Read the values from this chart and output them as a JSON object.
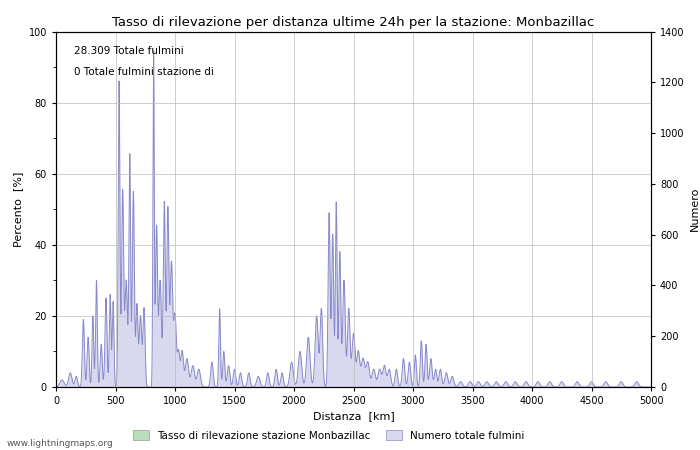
{
  "title": "Tasso di rilevazione per distanza ultime 24h per la stazione: Monbazillac",
  "xlabel": "Distanza  [km]",
  "ylabel_left": "Percento  [%]",
  "ylabel_right": "Numero",
  "xlim": [
    0,
    5000
  ],
  "ylim_left": [
    0,
    100
  ],
  "ylim_right": [
    0,
    1400
  ],
  "annotation_line1": "28.309 Totale fulmini",
  "annotation_line2": "0 Totale fulmini stazione di",
  "legend_label1": "Tasso di rilevazione stazione Monbazillac",
  "legend_label2": "Numero totale fulmini",
  "color_line": "#8888cc",
  "color_fill": "#d8d8ee",
  "color_green_fill": "#bbddbb",
  "watermark": "www.lightningmaps.org",
  "xticks": [
    0,
    500,
    1000,
    1500,
    2000,
    2500,
    3000,
    3500,
    4000,
    4500,
    5000
  ],
  "yticks_left": [
    0,
    20,
    40,
    60,
    80,
    100
  ],
  "yticks_right": [
    0,
    200,
    400,
    600,
    800,
    1000,
    1200,
    1400
  ],
  "figsize": [
    7.0,
    4.5
  ],
  "dpi": 100
}
